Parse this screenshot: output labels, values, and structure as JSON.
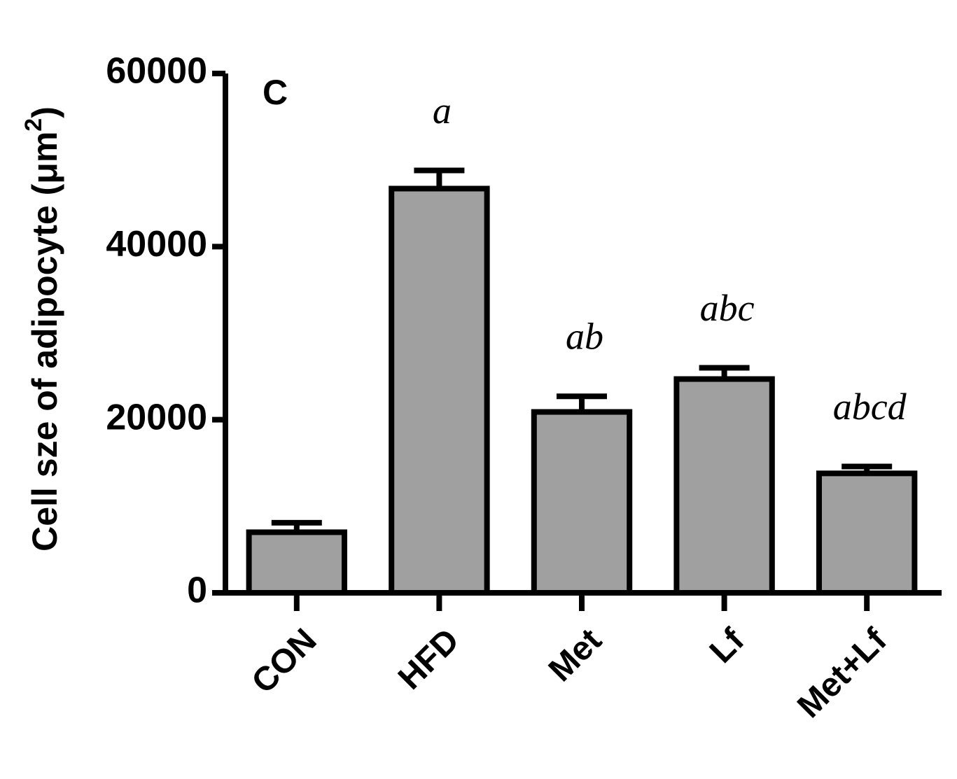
{
  "chart_data": {
    "type": "bar",
    "title": "C",
    "ylabel": {
      "text": "Cell sze of adipocyte (μm",
      "superscript": "2",
      "suffix": ")"
    },
    "categories": [
      "CON",
      "HFD",
      "Met",
      "Lf",
      "Met+Lf"
    ],
    "values": [
      7000,
      46700,
      20900,
      24700,
      13800
    ],
    "errors": [
      1100,
      2100,
      1800,
      1300,
      800
    ],
    "annotations": [
      null,
      "a",
      "ab",
      "abc",
      "abcd"
    ],
    "color": "#a0a0a0",
    "ylim": [
      0,
      60000
    ],
    "yticks": [
      0,
      20000,
      40000,
      60000
    ],
    "grid": false
  }
}
